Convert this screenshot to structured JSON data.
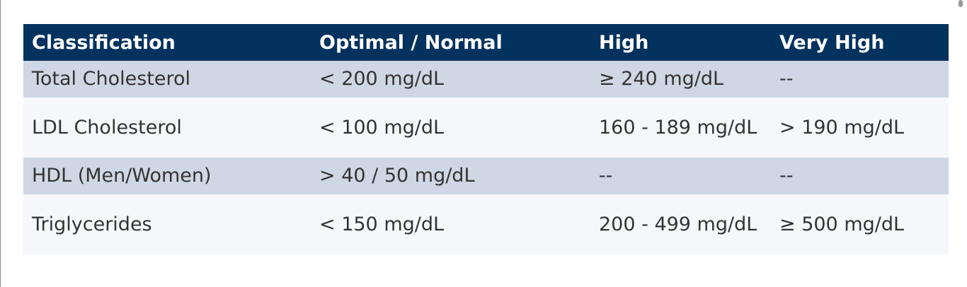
{
  "table": {
    "columns": [
      "Classification",
      "Optimal / Normal",
      "High",
      "Very High"
    ],
    "rows": [
      [
        "Total Cholesterol",
        "< 200 mg/dL",
        "≥ 240 mg/dL",
        "--"
      ],
      [
        "LDL Cholesterol",
        "< 100 mg/dL",
        "160 - 189 mg/dL",
        "> 190 mg/dL"
      ],
      [
        "HDL (Men/Women)",
        "> 40 / 50 mg/dL",
        "--",
        "--"
      ],
      [
        "Triglycerides",
        "< 150 mg/dL",
        "200 - 499 mg/dL",
        "≥ 500 mg/dL"
      ]
    ]
  }
}
